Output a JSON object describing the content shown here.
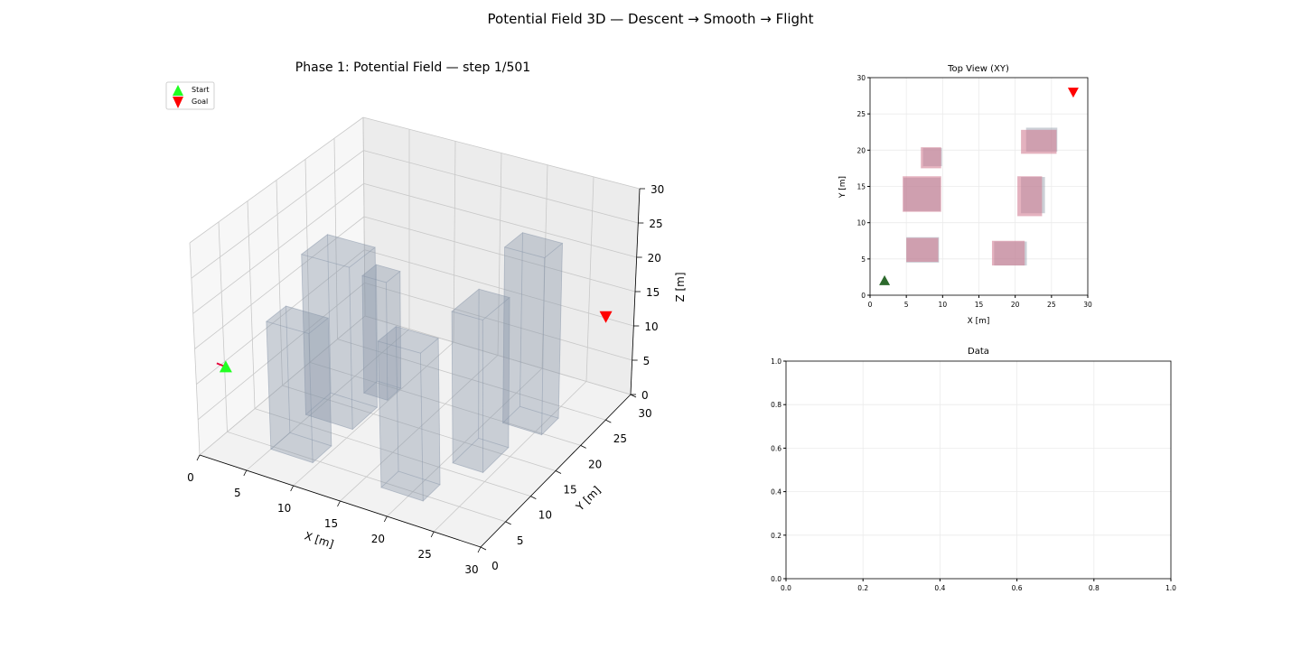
{
  "figure_title": "Potential Field 3D — Descent → Smooth → Flight",
  "chart_data": [
    {
      "type": "scatter3d",
      "title": "Phase 1: Potential Field — step 1/501",
      "xlabel": "X [m]",
      "ylabel": "Y [m]",
      "zlabel": "Z [m]",
      "xlim": [
        0,
        30
      ],
      "ylim": [
        0,
        30
      ],
      "zlim": [
        0,
        30
      ],
      "ticks": [
        0,
        5,
        10,
        15,
        20,
        25,
        30
      ],
      "grid": true,
      "legend": {
        "placement": "upper-left",
        "entries": [
          {
            "label": "Start",
            "color": "#22ff22",
            "marker": "triangle-up"
          },
          {
            "label": "Goal",
            "color": "#ff0000",
            "marker": "triangle-down"
          }
        ]
      },
      "start": {
        "x": 2,
        "y": 2,
        "z": 12
      },
      "goal": {
        "x": 28,
        "y": 28,
        "z": 12
      },
      "obstacles": [
        {
          "x": [
            5.0,
            9.5
          ],
          "y": [
            4.5,
            8.0
          ],
          "z": [
            0,
            18
          ]
        },
        {
          "x": [
            4.6,
            9.7
          ],
          "y": [
            11.6,
            16.2
          ],
          "z": [
            0,
            23
          ]
        },
        {
          "x": [
            7.3,
            9.9
          ],
          "y": [
            17.8,
            20.3
          ],
          "z": [
            0,
            17
          ]
        },
        {
          "x": [
            17.1,
            21.6
          ],
          "y": [
            4.1,
            7.4
          ],
          "z": [
            0,
            20
          ]
        },
        {
          "x": [
            20.8,
            24.1
          ],
          "y": [
            11.3,
            16.3
          ],
          "z": [
            0,
            21
          ]
        },
        {
          "x": [
            21.5,
            25.8
          ],
          "y": [
            19.8,
            23.1
          ],
          "z": [
            0,
            25
          ]
        }
      ],
      "obstacle_color": "#8796aa"
    },
    {
      "type": "scatter",
      "title": "Top View (XY)",
      "xlabel": "X [m]",
      "ylabel": "Y [m]",
      "xlim": [
        0,
        30
      ],
      "ylim": [
        0,
        30
      ],
      "ticks": [
        0,
        5,
        10,
        15,
        20,
        25,
        30
      ],
      "grid": true,
      "start": {
        "x": 2,
        "y": 2,
        "color": "#2d6a2d"
      },
      "goal": {
        "x": 28,
        "y": 28,
        "color": "#ff0000"
      },
      "obstacles_gray": [
        {
          "x": [
            5.0,
            9.5
          ],
          "y": [
            4.5,
            8.0
          ]
        },
        {
          "x": [
            4.6,
            9.7
          ],
          "y": [
            11.6,
            16.2
          ]
        },
        {
          "x": [
            7.3,
            9.9
          ],
          "y": [
            17.8,
            20.3
          ]
        },
        {
          "x": [
            17.1,
            21.6
          ],
          "y": [
            4.1,
            7.4
          ]
        },
        {
          "x": [
            20.8,
            24.1
          ],
          "y": [
            11.3,
            16.3
          ]
        },
        {
          "x": [
            21.5,
            25.8
          ],
          "y": [
            19.8,
            23.1
          ]
        }
      ],
      "obstacles_pink": [
        {
          "x": [
            5.0,
            9.4
          ],
          "y": [
            4.6,
            7.9
          ]
        },
        {
          "x": [
            4.5,
            9.8
          ],
          "y": [
            11.5,
            16.4
          ]
        },
        {
          "x": [
            7.0,
            9.8
          ],
          "y": [
            17.5,
            20.4
          ]
        },
        {
          "x": [
            16.8,
            21.3
          ],
          "y": [
            4.1,
            7.5
          ]
        },
        {
          "x": [
            20.3,
            23.7
          ],
          "y": [
            10.9,
            16.4
          ]
        },
        {
          "x": [
            20.8,
            25.7
          ],
          "y": [
            19.5,
            22.8
          ]
        }
      ]
    },
    {
      "type": "line",
      "title": "Data",
      "xlim": [
        0,
        1
      ],
      "ylim": [
        0,
        1
      ],
      "ticks": [
        "0.0",
        "0.2",
        "0.4",
        "0.6",
        "0.8",
        "1.0"
      ],
      "grid": true,
      "series": []
    }
  ]
}
